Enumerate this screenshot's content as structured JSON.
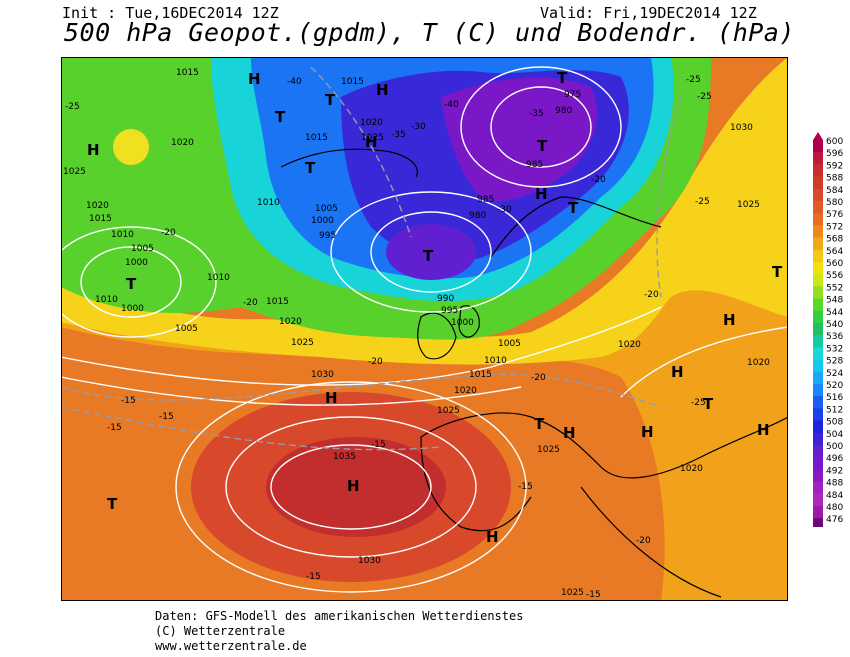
{
  "header": {
    "init_label": "Init : Tue,16DEC2014 12Z",
    "valid_label": "Valid: Fri,19DEC2014 12Z",
    "title": "500 hPa Geopot.(gpdm), T (C) und Bodendr. (hPa)"
  },
  "footer": {
    "line1": "Daten: GFS-Modell des amerikanischen Wetterdienstes",
    "line2": "(C) Wetterzentrale",
    "line3": "www.wetterzentrale.de"
  },
  "legend": {
    "values": [
      "600",
      "596",
      "592",
      "588",
      "584",
      "580",
      "576",
      "572",
      "568",
      "564",
      "560",
      "556",
      "552",
      "548",
      "544",
      "540",
      "536",
      "532",
      "528",
      "524",
      "520",
      "516",
      "512",
      "508",
      "504",
      "500",
      "496",
      "492",
      "488",
      "484",
      "480",
      "476"
    ],
    "colors": [
      "#b0004a",
      "#c01a3a",
      "#c72d2d",
      "#cf3a2a",
      "#d84a2a",
      "#e05a28",
      "#e86c22",
      "#ee8a1c",
      "#f2a818",
      "#f4c818",
      "#f2e010",
      "#c8e818",
      "#90e020",
      "#5ad82a",
      "#30d040",
      "#20c060",
      "#18c8a0",
      "#18d8d8",
      "#10c8f0",
      "#1aa8f8",
      "#1a88f8",
      "#1a60f0",
      "#1a40e8",
      "#2020e0",
      "#4020d8",
      "#6020d0",
      "#7818c8",
      "#8a18c0",
      "#a020c0",
      "#b028b8",
      "#a018a8",
      "#6a0a78"
    ]
  },
  "map": {
    "pressure_labels": [
      "1015",
      "1015",
      "1020",
      "1025",
      "1020",
      "1015",
      "1015",
      "1020",
      "1025",
      "1010",
      "1010",
      "1005",
      "1000",
      "1000",
      "995",
      "985",
      "980",
      "975",
      "980",
      "985",
      "1005",
      "1010",
      "1015",
      "1020",
      "1025",
      "1030",
      "1035",
      "1030",
      "1025",
      "1010",
      "1005",
      "1000",
      "995",
      "990",
      "1020",
      "1020",
      "1025",
      "1030",
      "1010",
      "1015",
      "1020",
      "1025",
      "1005",
      "1000",
      "1020",
      "1025"
    ],
    "temp_labels": [
      "-25",
      "-40",
      "-35",
      "-30",
      "-40",
      "-35",
      "-30",
      "-25",
      "-20",
      "-25",
      "-25",
      "-20",
      "-20",
      "-15",
      "-15",
      "-15",
      "-15",
      "-20",
      "-20",
      "-25",
      "-15",
      "-20",
      "-20",
      "-15",
      "-15"
    ],
    "hl_labels": [
      "H",
      "H",
      "H",
      "H",
      "T",
      "T",
      "T",
      "T",
      "T",
      "T",
      "T",
      "T",
      "H",
      "H",
      "H",
      "T",
      "H",
      "H",
      "H",
      "H",
      "T",
      "T",
      "H",
      "H",
      "T",
      "H",
      "T"
    ]
  }
}
